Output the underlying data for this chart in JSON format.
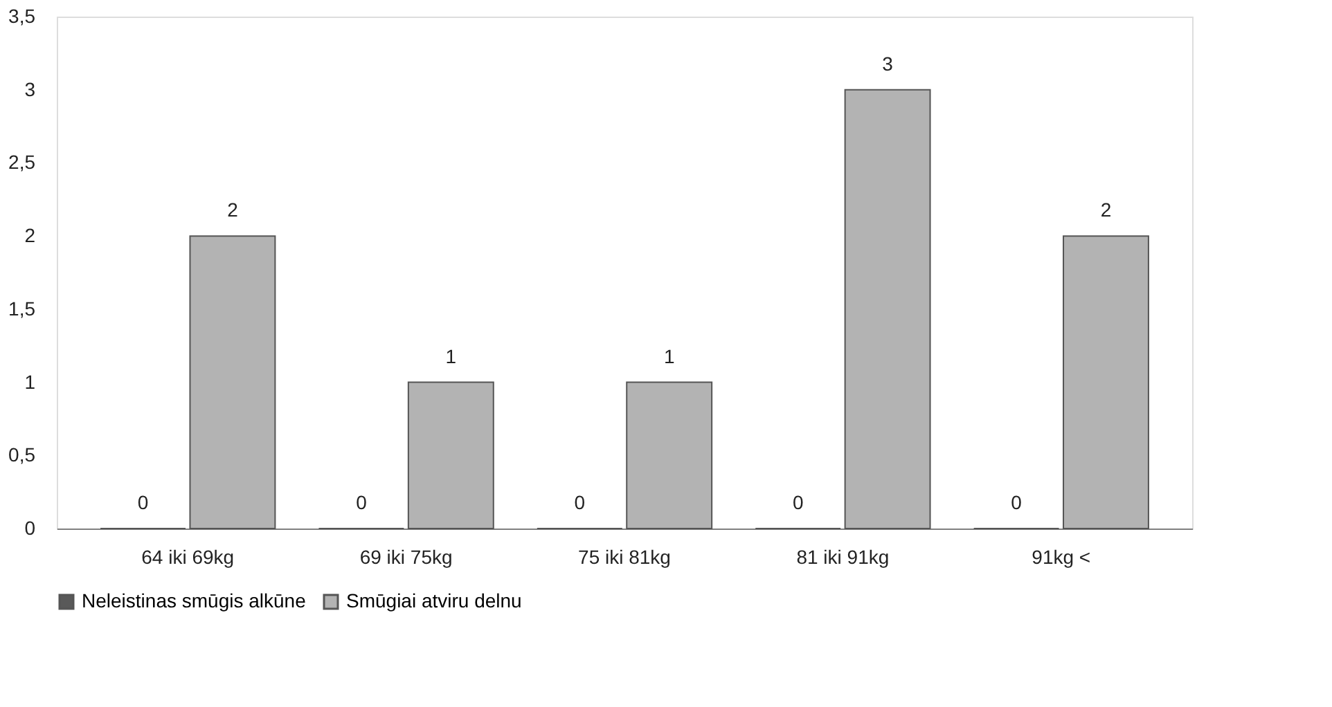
{
  "chart_data": {
    "type": "bar",
    "categories": [
      "64 iki 69kg",
      "69 iki 75kg",
      "75 iki 81kg",
      "81 iki 91kg",
      "91kg <"
    ],
    "series": [
      {
        "name": "Neleistinas smūgis alkūne",
        "color": "#595959",
        "values": [
          0,
          0,
          0,
          0,
          0
        ]
      },
      {
        "name": "Smūgiai atviru delnu",
        "color": "#b3b3b3",
        "values": [
          2,
          1,
          1,
          3,
          2
        ]
      }
    ],
    "ylim": [
      0,
      3.5
    ],
    "yticks": [
      0,
      {
        "value": 0.5,
        "label": "0,5"
      },
      1,
      {
        "value": 1.5,
        "label": "1,5"
      },
      2,
      {
        "value": 2.5,
        "label": "2,5"
      },
      3,
      {
        "value": 3.5,
        "label": "3,5"
      }
    ],
    "data_labels": true,
    "grid": false,
    "legend": "bottom"
  }
}
